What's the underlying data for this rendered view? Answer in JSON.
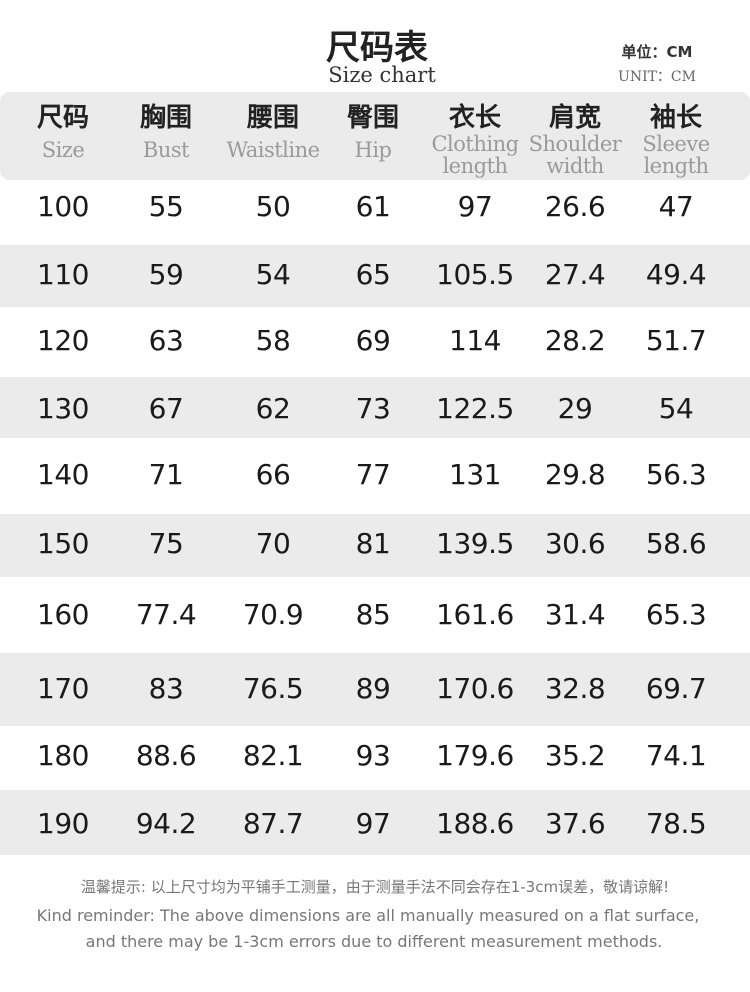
{
  "header": {
    "title": "尺码表",
    "subtitle": "Size chart",
    "unit_zh": "单位：CM",
    "unit_en": "UNIT：CM"
  },
  "table": {
    "columns": [
      {
        "zh": "尺码",
        "en": [
          "Size"
        ]
      },
      {
        "zh": "胸围",
        "en": [
          "Bust"
        ]
      },
      {
        "zh": "腰围",
        "en": [
          "Waistline"
        ]
      },
      {
        "zh": "臀围",
        "en": [
          "Hip"
        ]
      },
      {
        "zh": "衣长",
        "en": [
          "Clothing",
          "length"
        ]
      },
      {
        "zh": "肩宽",
        "en": [
          "Shoulder",
          "width"
        ]
      },
      {
        "zh": "袖长",
        "en": [
          "Sleeve",
          "length"
        ]
      }
    ],
    "rows": [
      [
        100,
        55,
        50,
        61,
        97,
        26.6,
        47
      ],
      [
        110,
        59,
        54,
        65,
        105.5,
        27.4,
        49.4
      ],
      [
        120,
        63,
        58,
        69,
        114,
        28.2,
        51.7
      ],
      [
        130,
        67,
        62,
        73,
        122.5,
        29,
        54
      ],
      [
        140,
        71,
        66,
        77,
        131,
        29.8,
        56.3
      ],
      [
        150,
        75,
        70,
        81,
        139.5,
        30.6,
        58.6
      ],
      [
        160,
        77.4,
        70.9,
        85,
        161.6,
        31.4,
        65.3
      ],
      [
        170,
        83,
        76.5,
        89,
        170.6,
        32.8,
        69.7
      ],
      [
        180,
        88.6,
        82.1,
        93,
        179.6,
        35.2,
        74.1
      ],
      [
        190,
        94.2,
        87.7,
        97,
        188.6,
        37.6,
        78.5
      ]
    ]
  },
  "footer": {
    "zh": "温馨提示:  以上尺寸均为平铺手工测量，由于测量手法不同会存在1-3cm误差，敬请谅解!",
    "en": [
      "Kind reminder: The above dimensions are all manually measured on a flat surface,",
      "and there may be 1-3cm errors due to different measurement methods."
    ]
  }
}
